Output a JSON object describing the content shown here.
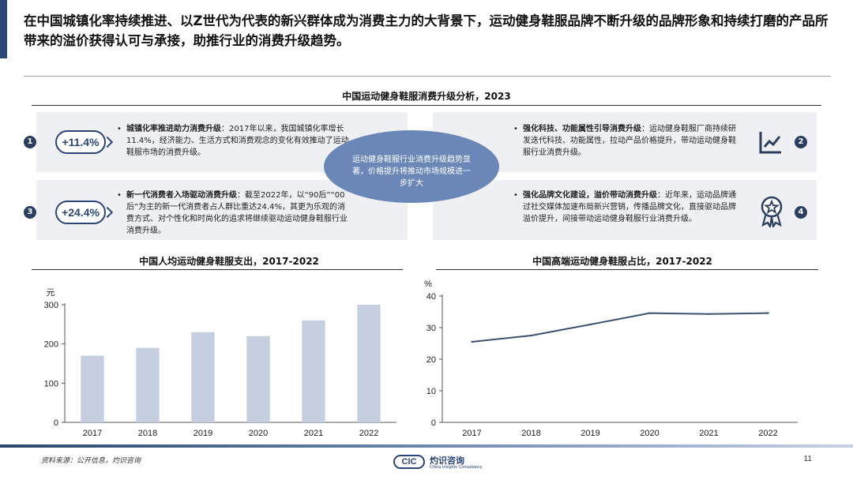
{
  "headline": "在中国城镇化率持续推进、以Z世代为代表的新兴群体成为消费主力的大背景下，运动健身鞋服品牌不断升级的品牌形象和持续打磨的产品所带来的溢价获得认可与承接，助推行业的消费升级趋势。",
  "analysis": {
    "title": "中国运动健身鞋服消费升级分析，2023",
    "center_text": "运动健身鞋服行业消费升级趋势显著，价格提升将推动市场规模进一步扩大",
    "items": [
      {
        "num": "1",
        "badge": "+11.4%",
        "bold": "城镇化率推进助力消费升级",
        "text": "：2017年以来，我国城镇化率增长11.4%，经济能力、生活方式和消费观念的变化有效推动了运动鞋服市场的消费升级。"
      },
      {
        "num": "2",
        "icon": "line-chart-icon",
        "bold": "强化科技、功能属性引导消费升级",
        "text": "：运动健身鞋服厂商持续研发迭代科技、功能属性，拉动产品价格提升，带动运动健身鞋服行业消费升级。"
      },
      {
        "num": "3",
        "badge": "+24.4%",
        "bold": "新一代消费者入场驱动消费升级",
        "text": "：截至2022年，以“90后”“00后”为主的新一代消费者占人群比重达24.4%，其更为乐观的消费方式、对个性化和时尚化的追求将继续驱动运动健身鞋服行业消费升级。"
      },
      {
        "num": "4",
        "icon": "award-ribbon-icon",
        "bold": "强化品牌文化建设，溢价带动消费升级",
        "text": "：近年来，运动品牌通过社交媒体加速布局新兴营销，传播品牌文化，直接驱动品牌溢价提升，间接带动运动健身鞋服行业消费升级。"
      }
    ]
  },
  "chart_data": [
    {
      "type": "bar",
      "title": "中国人均运动健身鞋服支出，2017-2022",
      "ylabel": "元",
      "categories": [
        "2017",
        "2018",
        "2019",
        "2020",
        "2021",
        "2022"
      ],
      "values": [
        170,
        190,
        230,
        220,
        260,
        300
      ],
      "ylim": [
        0,
        300
      ],
      "yticks": [
        0,
        100,
        200,
        300
      ],
      "color": "#c5cfe0",
      "grid": false
    },
    {
      "type": "line",
      "title": "中国高端运动健身鞋服占比，2017-2022",
      "ylabel": "%",
      "categories": [
        "2017",
        "2018",
        "2019",
        "2020",
        "2021",
        "2022"
      ],
      "values": [
        25.5,
        27.5,
        31.0,
        34.6,
        34.3,
        34.6
      ],
      "ylim": [
        0,
        40
      ],
      "yticks": [
        0,
        10,
        20,
        30,
        40
      ],
      "color": "#3f5170",
      "grid": false
    }
  ],
  "footer": {
    "source": "资料来源：公开信息，灼识咨询",
    "page": "11",
    "logo_mark": "CIC",
    "logo_cn": "灼识咨询",
    "logo_en": "China Insights Consultancy"
  }
}
